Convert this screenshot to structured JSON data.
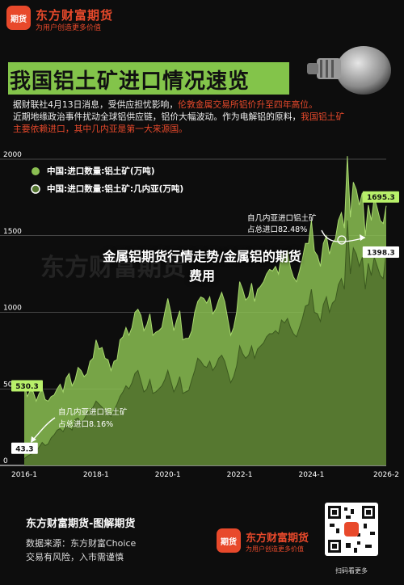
{
  "header": {
    "logo_text": "期货",
    "brand": "东方财富期货",
    "slogan": "为用户创造更多价值"
  },
  "title": "我国铝土矿进口情况速览",
  "intro": {
    "line1_plain": "据财联社4月13日消息，受供应担忧影响，",
    "line1_hl": "伦敦金属交易所铝价升至四年高位。",
    "line2_plain": "近期地缘政治事件扰动全球铝供应链，铝价大幅波动。作为电解铝的原料，",
    "line2_hl": "我国铝土矿",
    "line3_hl": "主要依赖进口，其中几内亚是第一大来源国。"
  },
  "overlay_title": {
    "line1": "金属铝期货行情走势/金属铝的期货",
    "line2": "费用"
  },
  "watermark": "东方财富期货",
  "chart_data": {
    "type": "area",
    "x_tick_labels": [
      "2016-1",
      "2018-1",
      "2020-1",
      "2022-1",
      "2024-1",
      "2026-2"
    ],
    "x_tick_years": [
      2016.0,
      2018.0,
      2020.0,
      2022.0,
      2024.0,
      2026.083
    ],
    "x_range": [
      2016.0,
      2026.083
    ],
    "ylim": [
      0,
      2000
    ],
    "y_ticks": [
      0,
      500,
      1000,
      1500,
      2000
    ],
    "grid": true,
    "legend_position": "top-left",
    "colors": {
      "total": "#8bbf52",
      "guinea": "#54762f",
      "guinea_line": "#3c5a1f",
      "accent": "#b8f06a"
    },
    "series": [
      {
        "name": "中国:进口数量:铝土矿(万吨)",
        "x": [
          2016.0,
          2016.083,
          2016.167,
          2016.25,
          2016.333,
          2016.417,
          2016.5,
          2016.583,
          2016.667,
          2016.75,
          2016.833,
          2016.917,
          2017.0,
          2017.083,
          2017.167,
          2017.25,
          2017.333,
          2017.417,
          2017.5,
          2017.583,
          2017.667,
          2017.75,
          2017.833,
          2017.917,
          2018.0,
          2018.083,
          2018.167,
          2018.25,
          2018.333,
          2018.417,
          2018.5,
          2018.583,
          2018.667,
          2018.75,
          2018.833,
          2018.917,
          2019.0,
          2019.083,
          2019.167,
          2019.25,
          2019.333,
          2019.417,
          2019.5,
          2019.583,
          2019.667,
          2019.75,
          2019.833,
          2019.917,
          2020.0,
          2020.083,
          2020.167,
          2020.25,
          2020.333,
          2020.417,
          2020.5,
          2020.583,
          2020.667,
          2020.75,
          2020.833,
          2020.917,
          2021.0,
          2021.083,
          2021.167,
          2021.25,
          2021.333,
          2021.417,
          2021.5,
          2021.583,
          2021.667,
          2021.75,
          2021.833,
          2021.917,
          2022.0,
          2022.083,
          2022.167,
          2022.25,
          2022.333,
          2022.417,
          2022.5,
          2022.583,
          2022.667,
          2022.75,
          2022.833,
          2022.917,
          2023.0,
          2023.083,
          2023.167,
          2023.25,
          2023.333,
          2023.417,
          2023.5,
          2023.583,
          2023.667,
          2023.75,
          2023.833,
          2023.917,
          2024.0,
          2024.083,
          2024.167,
          2024.25,
          2024.333,
          2024.417,
          2024.5,
          2024.583,
          2024.667,
          2024.75,
          2024.833,
          2024.917,
          2025.0,
          2025.083,
          2025.167,
          2025.25,
          2025.333,
          2025.417,
          2025.5,
          2025.583,
          2025.667,
          2025.75,
          2025.833,
          2025.917,
          2026.0,
          2026.083
        ],
        "values": [
          530.3,
          450,
          490,
          480,
          420,
          470,
          500,
          430,
          420,
          450,
          460,
          500,
          530,
          480,
          570,
          600,
          520,
          560,
          640,
          620,
          580,
          600,
          680,
          700,
          820,
          760,
          770,
          700,
          690,
          620,
          680,
          690,
          820,
          840,
          900,
          850,
          900,
          1000,
          1020,
          980,
          880,
          920,
          990,
          850,
          870,
          880,
          900,
          1000,
          1090,
          1000,
          880,
          950,
          1010,
          820,
          830,
          830,
          880,
          1000,
          1070,
          1100,
          1090,
          1060,
          1100,
          990,
          1020,
          1080,
          1130,
          1070,
          960,
          850,
          900,
          1000,
          1200,
          1150,
          1080,
          1100,
          1190,
          1070,
          1150,
          1170,
          1200,
          1250,
          1280,
          1270,
          1300,
          1250,
          1380,
          1350,
          1400,
          1290,
          1230,
          1200,
          1270,
          1350,
          1450,
          1450,
          1600,
          1400,
          1370,
          1300,
          1450,
          1500,
          1380,
          1450,
          1480,
          1600,
          1650,
          1550,
          2020,
          1620,
          1850,
          1800,
          1700,
          1780,
          1500,
          1700,
          1600,
          1750,
          1680,
          1600,
          1580,
          1695.3
        ]
      },
      {
        "name": "中国:进口数量:铝土矿:几内亚(万吨)",
        "x": [
          2016.0,
          2016.083,
          2016.167,
          2016.25,
          2016.333,
          2016.417,
          2016.5,
          2016.583,
          2016.667,
          2016.75,
          2016.833,
          2016.917,
          2017.0,
          2017.083,
          2017.167,
          2017.25,
          2017.333,
          2017.417,
          2017.5,
          2017.583,
          2017.667,
          2017.75,
          2017.833,
          2017.917,
          2018.0,
          2018.083,
          2018.167,
          2018.25,
          2018.333,
          2018.417,
          2018.5,
          2018.583,
          2018.667,
          2018.75,
          2018.833,
          2018.917,
          2019.0,
          2019.083,
          2019.167,
          2019.25,
          2019.333,
          2019.417,
          2019.5,
          2019.583,
          2019.667,
          2019.75,
          2019.833,
          2019.917,
          2020.0,
          2020.083,
          2020.167,
          2020.25,
          2020.333,
          2020.417,
          2020.5,
          2020.583,
          2020.667,
          2020.75,
          2020.833,
          2020.917,
          2021.0,
          2021.083,
          2021.167,
          2021.25,
          2021.333,
          2021.417,
          2021.5,
          2021.583,
          2021.667,
          2021.75,
          2021.833,
          2021.917,
          2022.0,
          2022.083,
          2022.167,
          2022.25,
          2022.333,
          2022.417,
          2022.5,
          2022.583,
          2022.667,
          2022.75,
          2022.833,
          2022.917,
          2023.0,
          2023.083,
          2023.167,
          2023.25,
          2023.333,
          2023.417,
          2023.5,
          2023.583,
          2023.667,
          2023.75,
          2023.833,
          2023.917,
          2024.0,
          2024.083,
          2024.167,
          2024.25,
          2024.333,
          2024.417,
          2024.5,
          2024.583,
          2024.667,
          2024.75,
          2024.833,
          2024.917,
          2025.0,
          2025.083,
          2025.167,
          2025.25,
          2025.333,
          2025.417,
          2025.5,
          2025.583,
          2025.667,
          2025.75,
          2025.833,
          2025.917,
          2026.0,
          2026.083
        ],
        "values": [
          43.3,
          60,
          70,
          80,
          90,
          120,
          150,
          130,
          140,
          180,
          200,
          230,
          240,
          220,
          260,
          250,
          230,
          300,
          310,
          280,
          300,
          340,
          360,
          380,
          420,
          400,
          380,
          360,
          340,
          320,
          360,
          400,
          450,
          480,
          520,
          500,
          540,
          600,
          620,
          550,
          480,
          500,
          560,
          470,
          480,
          500,
          520,
          560,
          620,
          550,
          480,
          520,
          580,
          470,
          480,
          490,
          560,
          620,
          700,
          680,
          650,
          640,
          680,
          620,
          650,
          700,
          720,
          680,
          610,
          540,
          580,
          650,
          780,
          730,
          700,
          720,
          780,
          700,
          760,
          780,
          800,
          840,
          860,
          860,
          880,
          860,
          950,
          930,
          960,
          900,
          860,
          840,
          900,
          960,
          1040,
          1050,
          1150,
          1000,
          990,
          940,
          1050,
          1100,
          1000,
          1060,
          1080,
          1180,
          1220,
          1150,
          1600,
          1250,
          1420,
          1380,
          1300,
          1360,
          1150,
          1320,
          1240,
          1360,
          1300,
          1240,
          1220,
          1398.3
        ]
      }
    ],
    "value_labels": [
      {
        "series": 0,
        "index": 0,
        "text": "530.3"
      },
      {
        "series": 1,
        "index": 0,
        "text": "43.3"
      },
      {
        "series": 0,
        "index": 121,
        "text": "1695.3"
      },
      {
        "series": 1,
        "index": 121,
        "text": "1398.3"
      }
    ],
    "annotations": [
      {
        "line1": "自几内亚进口铝土矿",
        "line2": "占总进口82.48%"
      },
      {
        "line1": "自几内亚进口铝土矿",
        "line2": "占总进口8.16%"
      }
    ]
  },
  "footer": {
    "title": "东方财富期货-图解期货",
    "source": "数据来源：东方财富Choice",
    "risk": "交易有风险，入市需谨慎",
    "logo_text": "期货",
    "brand": "东方财富期货",
    "slogan": "为用户创造更多价值",
    "qr_label": "扫码看更多"
  }
}
